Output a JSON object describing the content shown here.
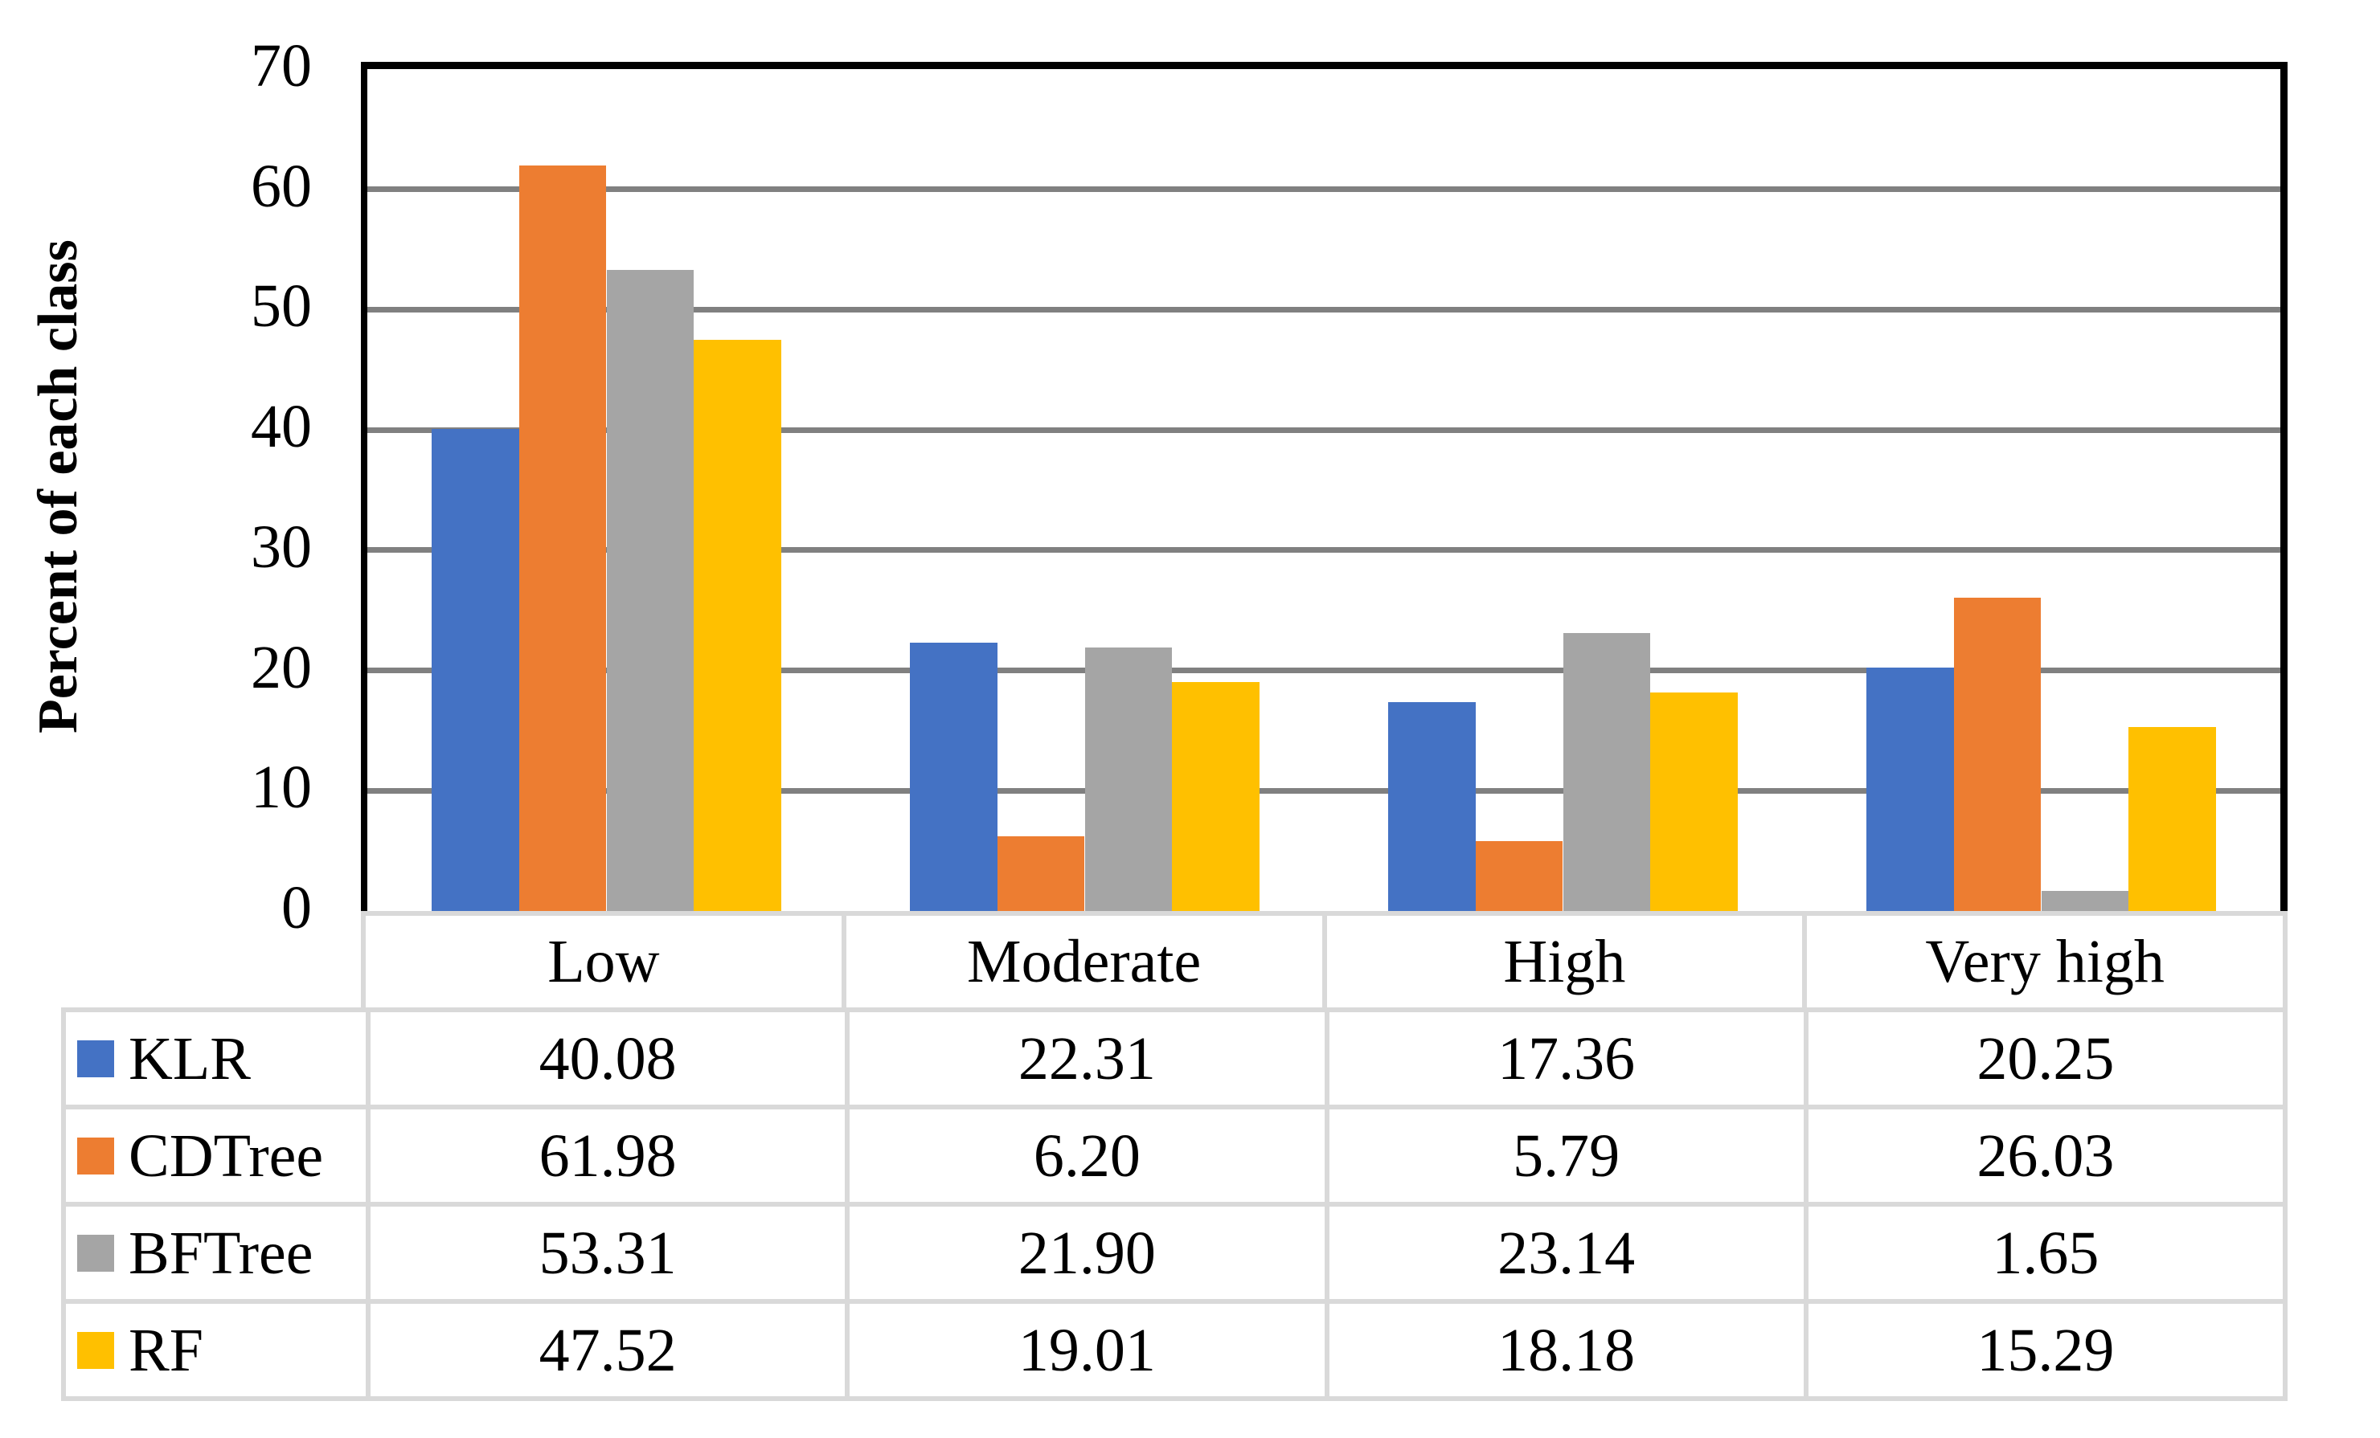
{
  "chart_data": {
    "type": "bar",
    "title": "",
    "xlabel": "",
    "ylabel": "Percent of each class",
    "categories": [
      "Low",
      "Moderate",
      "High",
      "Very high"
    ],
    "series": [
      {
        "name": "KLR",
        "color": "#4472C4",
        "values": [
          40.08,
          22.31,
          17.36,
          20.25
        ]
      },
      {
        "name": "CDTree",
        "color": "#ED7D31",
        "values": [
          61.98,
          6.2,
          5.79,
          26.03
        ]
      },
      {
        "name": "BFTree",
        "color": "#A5A5A5",
        "values": [
          53.31,
          21.9,
          23.14,
          1.65
        ]
      },
      {
        "name": "RF",
        "color": "#FFC000",
        "values": [
          47.52,
          19.01,
          18.18,
          15.29
        ]
      }
    ],
    "y_axis": {
      "min": 0,
      "max": 70,
      "tick_step": 10,
      "ticks": [
        0,
        10,
        20,
        30,
        40,
        50,
        60,
        70
      ]
    },
    "ylim": [
      0,
      70
    ],
    "grid": "horizontal-gridlines-on",
    "legend_position": "data-table-left-column",
    "value_format_decimals": 2,
    "colors": {
      "axis": "#000000",
      "gridline": "#808080",
      "table_border": "#D9D9D9",
      "background": "#FFFFFF"
    }
  }
}
